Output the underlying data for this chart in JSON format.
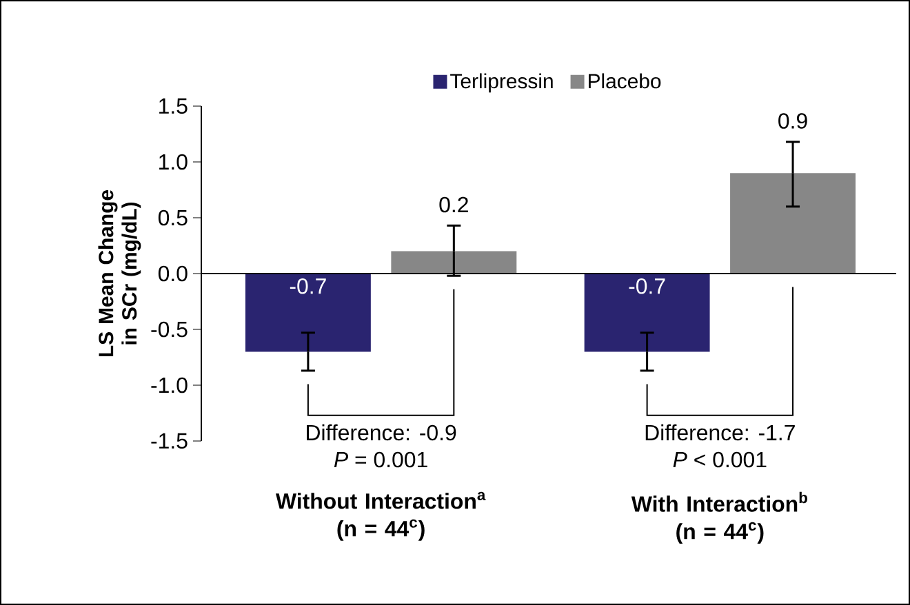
{
  "chart_data": {
    "type": "bar",
    "ylabel": "LS Mean Change in SCr (mg/dL)",
    "categories": [
      "Without Interaction$^{a}$ (n = 44$^{c}$)",
      "With Interaction$^{b}$ (n = 44$^{c}$)"
    ],
    "series": [
      {
        "name": "Terlipressin",
        "color": "#2a2470",
        "values": [
          -0.7,
          -0.7
        ],
        "errors": [
          [
            -0.87,
            -0.53
          ],
          [
            -0.87,
            -0.53
          ]
        ]
      },
      {
        "name": "Placebo",
        "color": "#878787",
        "values": [
          0.2,
          0.9
        ],
        "errors": [
          [
            -0.02,
            0.43
          ],
          [
            0.6,
            1.18
          ]
        ]
      }
    ],
    "ylim": [
      -1.5,
      1.5
    ],
    "yticks": [
      1.5,
      {
        "value": 1,
        "label": "1.0"
      },
      0.5,
      {
        "value": 0,
        "label": "0.0"
      },
      -0.5,
      {
        "value": -1,
        "label": "-1.0"
      },
      -1.5
    ],
    "data_labels": true,
    "legend": "top",
    "annotations": [
      "Difference: -0.9",
      "*P* = 0.001",
      "Difference: -1.7",
      "*P* < 0.001"
    ]
  }
}
